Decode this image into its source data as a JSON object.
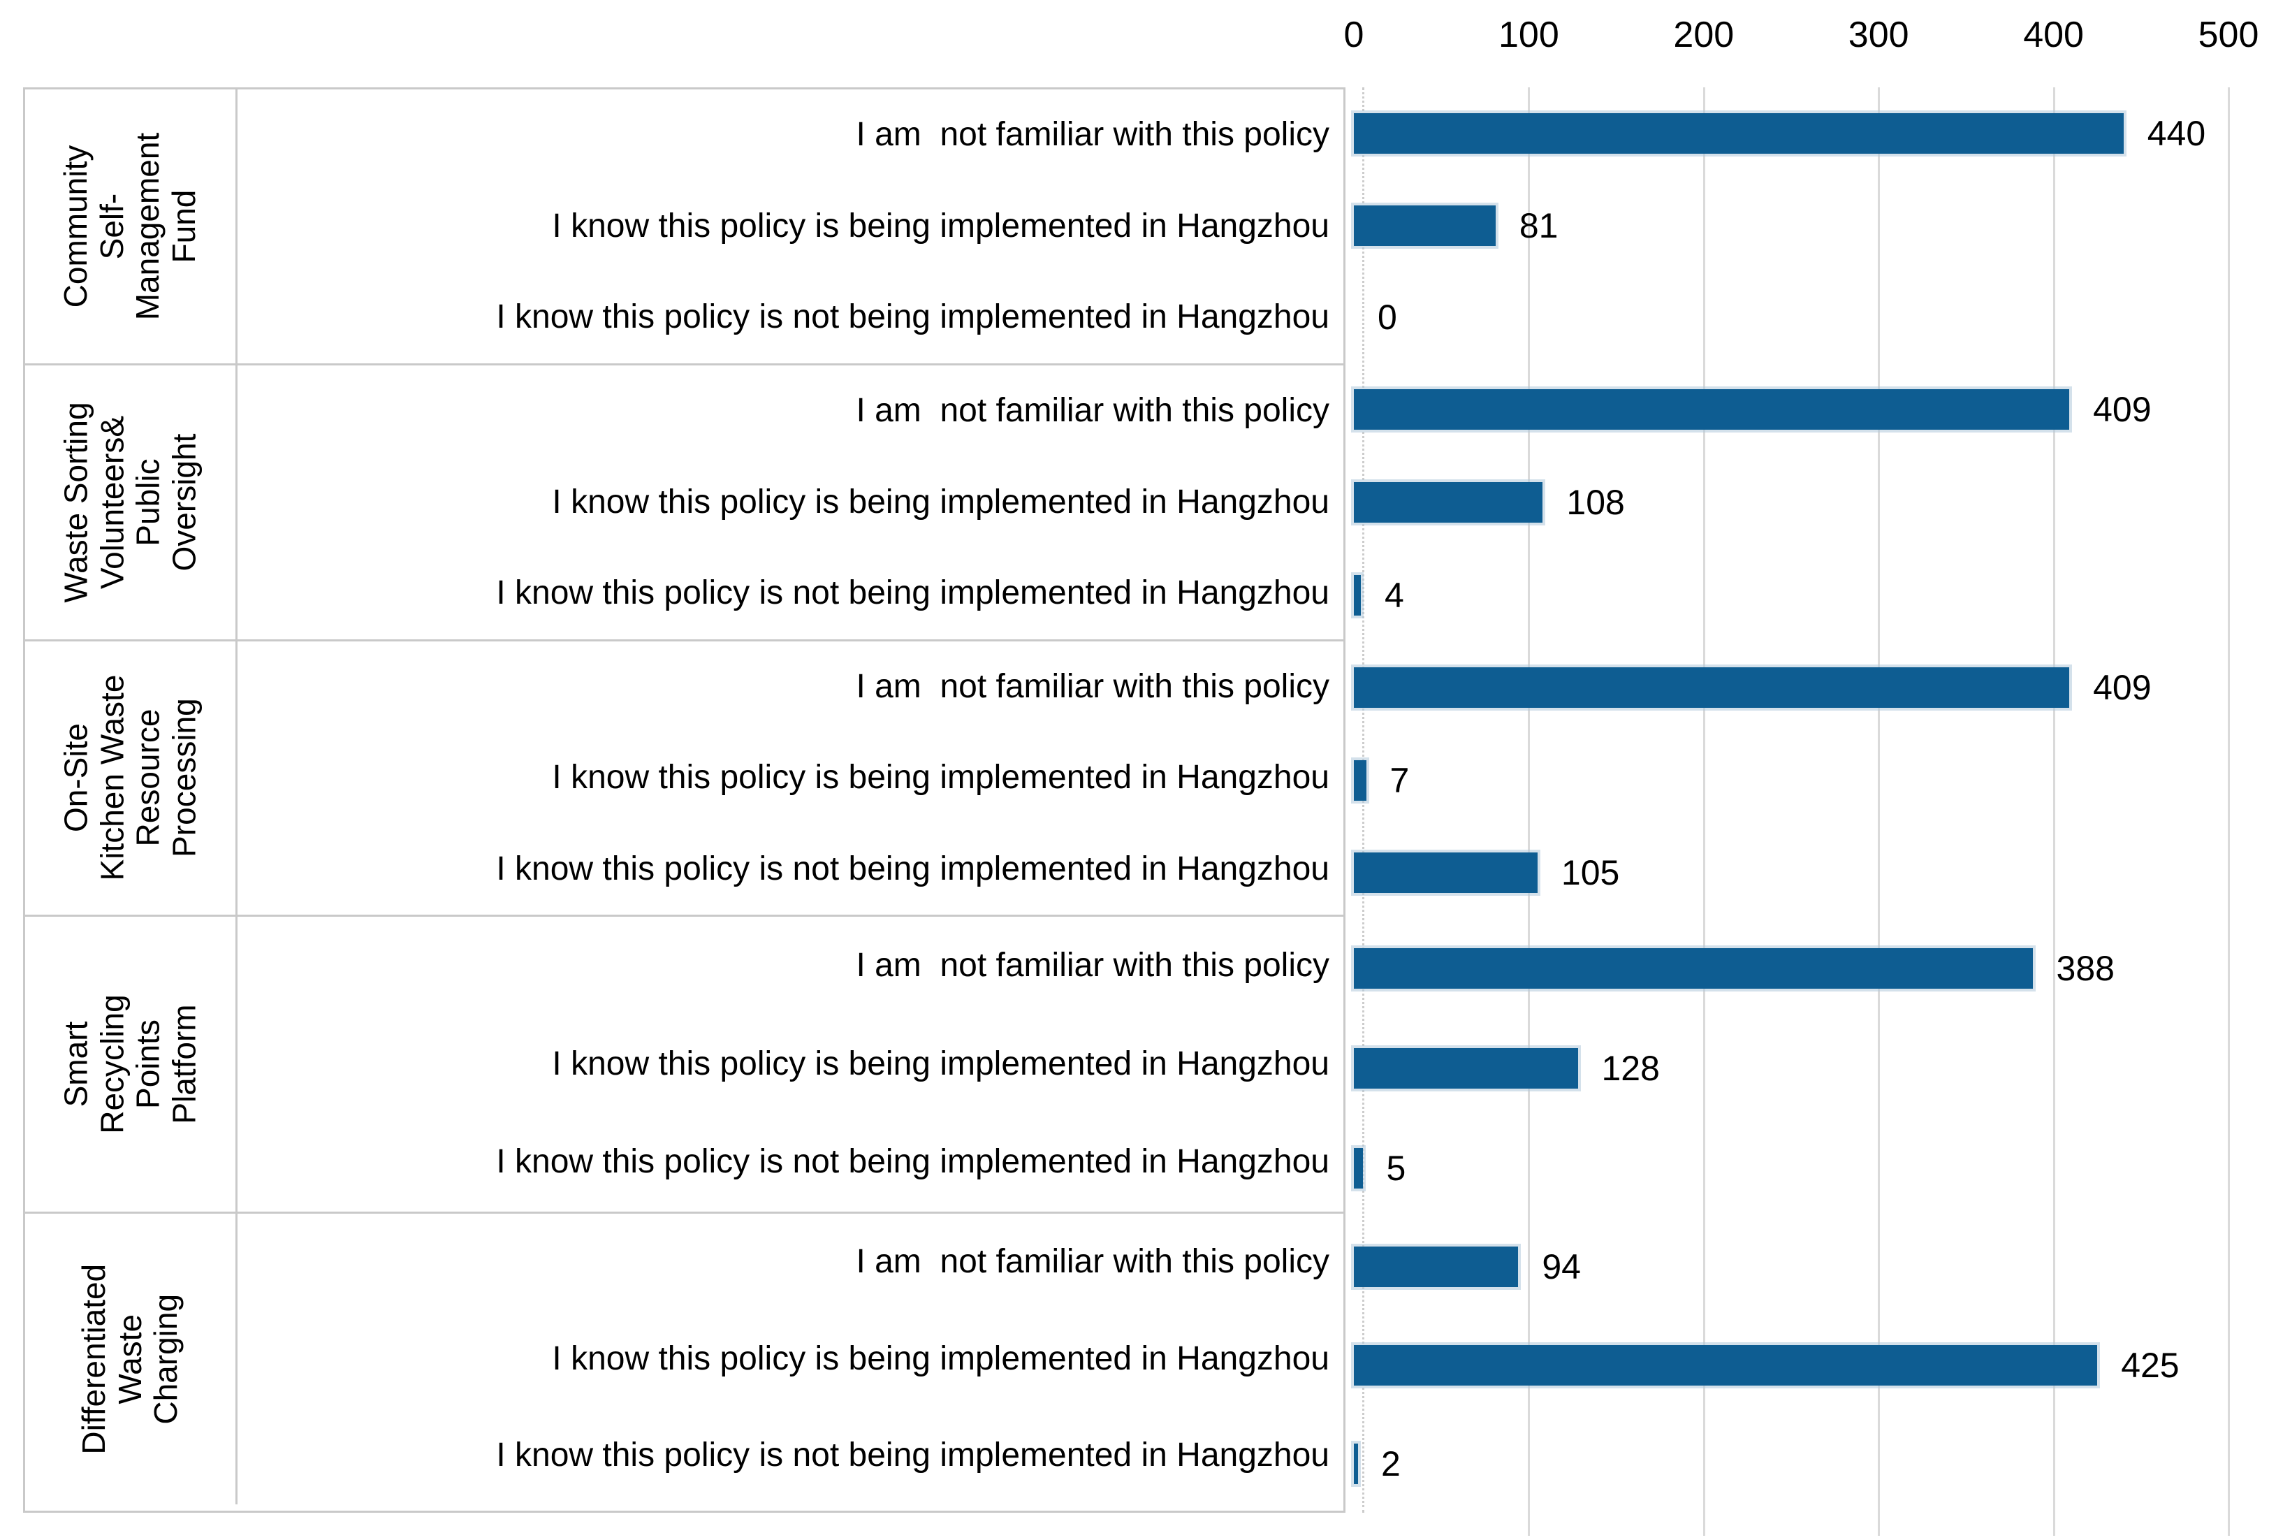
{
  "chart_data": {
    "type": "bar",
    "orientation": "horizontal",
    "title": "",
    "x_axis": {
      "position": "top",
      "ticks": [
        0,
        100,
        200,
        300,
        400,
        500
      ],
      "min": 0,
      "max": 500,
      "gridlines": true
    },
    "bar_color": "#0E5D92",
    "gridline_color": "#dadada",
    "table_border_color": "#c9c9c9",
    "groups": [
      {
        "category": "Community Self-Management Fund",
        "category_lines": [
          "Community",
          "Self-",
          "Management",
          "Fund"
        ],
        "rows": [
          {
            "label": "I am  not familiar with this policy",
            "value": 440
          },
          {
            "label": "I know this policy is being implemented in Hangzhou",
            "value": 81
          },
          {
            "label": "I know this policy is not being implemented in Hangzhou",
            "value": 0
          }
        ]
      },
      {
        "category": "Waste Sorting Volunteers& Public Oversight",
        "category_lines": [
          "Waste Sorting",
          "Volunteers&",
          "Public",
          "Oversight"
        ],
        "rows": [
          {
            "label": "I am  not familiar with this policy",
            "value": 409
          },
          {
            "label": "I know this policy is being implemented in Hangzhou",
            "value": 108
          },
          {
            "label": "I know this policy is not being implemented in Hangzhou",
            "value": 4
          }
        ]
      },
      {
        "category": "On-Site Kitchen Waste Resource Processing",
        "category_lines": [
          "On-Site",
          "Kitchen Waste",
          "Resource",
          "Processing"
        ],
        "rows": [
          {
            "label": "I am  not familiar with this policy",
            "value": 409
          },
          {
            "label": "I know this policy is being implemented in Hangzhou",
            "value": 7
          },
          {
            "label": "I know this policy is not being implemented in Hangzhou",
            "value": 105
          }
        ]
      },
      {
        "category": "Smart Recycling Points Platform",
        "category_lines": [
          "Smart",
          "Recycling",
          "Points Platform"
        ],
        "rows": [
          {
            "label": "I am  not familiar with this policy",
            "value": 388
          },
          {
            "label": "I know this policy is being implemented in Hangzhou",
            "value": 128
          },
          {
            "label": "I know this policy is not being implemented in Hangzhou",
            "value": 5
          }
        ]
      },
      {
        "category": "Differentiated Waste Charging",
        "category_lines": [
          "Differentiated",
          "Waste",
          "Charging"
        ],
        "rows": [
          {
            "label": "I am  not familiar with this policy",
            "value": 94
          },
          {
            "label": "I know this policy is being implemented in Hangzhou",
            "value": 425
          },
          {
            "label": "I know this policy is not being implemented in Hangzhou",
            "value": 2
          }
        ]
      }
    ]
  }
}
